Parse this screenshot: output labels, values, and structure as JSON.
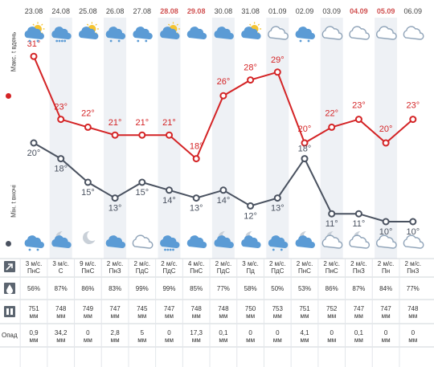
{
  "days": [
    {
      "date": "23.08",
      "weekend": false,
      "icon_day": "partly-cloudy-rain-icon",
      "icon_night": "cloudy-rain-icon",
      "t_max": 31,
      "t_min": 20,
      "wind_speed": "3 м/с.",
      "wind_dir": "ПнС",
      "humidity": "56%",
      "pressure": "751",
      "pressure_unit": "мм",
      "precip": "0,9",
      "precip_unit": "мм"
    },
    {
      "date": "24.08",
      "weekend": false,
      "icon_day": "cloudy-heavy-rain-icon",
      "icon_night": "moon-cloud-icon",
      "t_max": 23,
      "t_min": 18,
      "wind_speed": "3 м/с.",
      "wind_dir": "С",
      "humidity": "87%",
      "pressure": "748",
      "pressure_unit": "мм",
      "precip": "34,2",
      "precip_unit": "мм"
    },
    {
      "date": "25.08",
      "weekend": false,
      "icon_day": "sun-cloud-icon",
      "icon_night": "moon-icon",
      "t_max": 22,
      "t_min": 15,
      "wind_speed": "9 м/с.",
      "wind_dir": "ПнС",
      "humidity": "86%",
      "pressure": "749",
      "pressure_unit": "мм",
      "precip": "0",
      "precip_unit": "мм"
    },
    {
      "date": "26.08",
      "weekend": false,
      "icon_day": "cloudy-rain-icon",
      "icon_night": "cloud-icon",
      "t_max": 21,
      "t_min": 13,
      "wind_speed": "2 м/с.",
      "wind_dir": "ПнЗ",
      "humidity": "83%",
      "pressure": "747",
      "pressure_unit": "мм",
      "precip": "2,8",
      "precip_unit": "мм"
    },
    {
      "date": "27.08",
      "weekend": false,
      "icon_day": "cloud-light-rain-icon",
      "icon_night": "cloud-outline-icon",
      "t_max": 21,
      "t_min": 15,
      "wind_speed": "2 м/с.",
      "wind_dir": "ПдС",
      "humidity": "99%",
      "pressure": "745",
      "pressure_unit": "мм",
      "precip": "5",
      "precip_unit": "мм"
    },
    {
      "date": "28.08",
      "weekend": true,
      "icon_day": "partly-cloudy-icon",
      "icon_night": "cloudy-heavy-rain-icon",
      "t_max": 21,
      "t_min": 14,
      "wind_speed": "2 м/с.",
      "wind_dir": "ПдС",
      "humidity": "99%",
      "pressure": "747",
      "pressure_unit": "мм",
      "precip": "0",
      "precip_unit": "мм"
    },
    {
      "date": "29.08",
      "weekend": true,
      "icon_day": "cloud-icon",
      "icon_night": "cloud-icon",
      "t_max": 18,
      "t_min": 13,
      "wind_speed": "4 м/с.",
      "wind_dir": "ПнС",
      "humidity": "85%",
      "pressure": "748",
      "pressure_unit": "мм",
      "precip": "17,3",
      "precip_unit": "мм"
    },
    {
      "date": "30.08",
      "weekend": false,
      "icon_day": "cloud-icon",
      "icon_night": "moon-cloud-icon",
      "t_max": 26,
      "t_min": 14,
      "wind_speed": "2 м/с.",
      "wind_dir": "ПдС",
      "humidity": "77%",
      "pressure": "748",
      "pressure_unit": "мм",
      "precip": "0,1",
      "precip_unit": "мм"
    },
    {
      "date": "31.08",
      "weekend": false,
      "icon_day": "partly-cloudy-icon",
      "icon_night": "moon-cloud-icon",
      "t_max": 28,
      "t_min": 12,
      "wind_speed": "3 м/с.",
      "wind_dir": "Пд",
      "humidity": "58%",
      "pressure": "750",
      "pressure_unit": "мм",
      "precip": "0",
      "precip_unit": "мм"
    },
    {
      "date": "01.09",
      "weekend": false,
      "icon_day": "cloud-outline-icon",
      "icon_night": "cloudy-light-rain-icon",
      "t_max": 29,
      "t_min": 13,
      "wind_speed": "2 м/с.",
      "wind_dir": "ПдС",
      "humidity": "50%",
      "pressure": "753",
      "pressure_unit": "мм",
      "precip": "0",
      "precip_unit": "мм"
    },
    {
      "date": "02.09",
      "weekend": false,
      "icon_day": "cloud-light-rain-icon",
      "icon_night": "moon-cloud-icon",
      "t_max": 20,
      "t_min": 18,
      "wind_speed": "2 м/с.",
      "wind_dir": "ПнС",
      "humidity": "53%",
      "pressure": "751",
      "pressure_unit": "мм",
      "precip": "4,1",
      "precip_unit": "мм"
    },
    {
      "date": "03.09",
      "weekend": false,
      "icon_day": "cloud-outline-icon",
      "icon_night": "moon-cloud-outline-icon",
      "t_max": 22,
      "t_min": 11,
      "wind_speed": "2 м/с.",
      "wind_dir": "ПнС",
      "humidity": "86%",
      "pressure": "752",
      "pressure_unit": "мм",
      "precip": "0",
      "precip_unit": "мм"
    },
    {
      "date": "04.09",
      "weekend": true,
      "icon_day": "cloud-outline-icon",
      "icon_night": "moon-cloud-outline-icon",
      "t_max": 23,
      "t_min": 11,
      "wind_speed": "2 м/с.",
      "wind_dir": "ПнЗ",
      "humidity": "87%",
      "pressure": "747",
      "pressure_unit": "мм",
      "precip": "0,1",
      "precip_unit": "мм"
    },
    {
      "date": "05.09",
      "weekend": true,
      "icon_day": "cloud-outline-icon",
      "icon_night": "cloud-outline-icon",
      "t_max": 20,
      "t_min": 10,
      "wind_speed": "2 м/с.",
      "wind_dir": "Пн",
      "humidity": "84%",
      "pressure": "747",
      "pressure_unit": "мм",
      "precip": "0",
      "precip_unit": "мм"
    },
    {
      "date": "06.09",
      "weekend": false,
      "icon_day": "cloud-outline-icon",
      "icon_night": "cloud-outline-icon",
      "t_max": 23,
      "t_min": 10,
      "wind_speed": "2 м/с.",
      "wind_dir": "ПнЗ",
      "humidity": "77%",
      "pressure": "748",
      "pressure_unit": "мм",
      "precip": "0",
      "precip_unit": "мм"
    }
  ],
  "axis": {
    "max_label": "Макс. t вдень",
    "min_label": "Мін. t вночі"
  },
  "rows": {
    "wind_icon": "wind-arrow-icon",
    "humidity_icon": "water-drop-icon",
    "pressure_icon": "barometer-icon",
    "precip_label": "Опад"
  },
  "colors": {
    "max_line": "#d42426",
    "min_line": "#4a5260",
    "weekend": "#d05050",
    "column_shade": "#eef1f5",
    "icon_fill": "#5b9bd5"
  },
  "chart_data": {
    "type": "line",
    "x": [
      "23.08",
      "24.08",
      "25.08",
      "26.08",
      "27.08",
      "28.08",
      "29.08",
      "30.08",
      "31.08",
      "01.09",
      "02.09",
      "03.09",
      "04.09",
      "05.09",
      "06.09"
    ],
    "series": [
      {
        "name": "Макс. t вдень",
        "values": [
          31,
          23,
          22,
          21,
          21,
          21,
          18,
          26,
          28,
          29,
          20,
          22,
          23,
          20,
          23
        ]
      },
      {
        "name": "Мін. t вночі",
        "values": [
          20,
          18,
          15,
          13,
          15,
          14,
          13,
          14,
          12,
          13,
          18,
          11,
          11,
          10,
          10
        ]
      }
    ],
    "unit": "°"
  }
}
